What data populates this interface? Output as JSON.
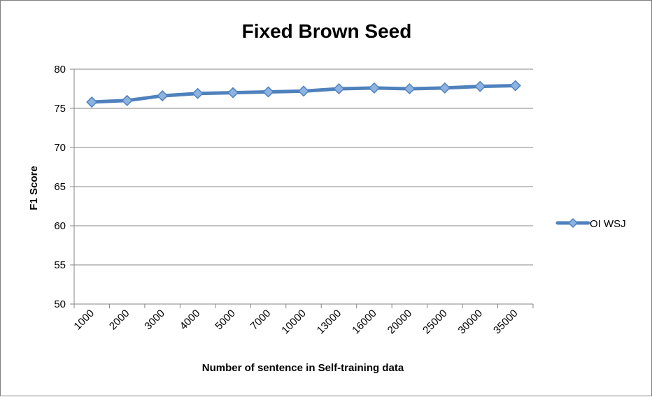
{
  "chart_data": {
    "type": "line",
    "title": "Fixed Brown Seed",
    "xlabel": "Number of sentence in Self-training data",
    "ylabel": "F1 Score",
    "ylim": [
      50,
      80
    ],
    "yticks": [
      50,
      55,
      60,
      65,
      70,
      75,
      80
    ],
    "grid": true,
    "legend_position": "right",
    "categories": [
      "1000",
      "2000",
      "3000",
      "4000",
      "5000",
      "7000",
      "10000",
      "13000",
      "16000",
      "20000",
      "25000",
      "30000",
      "35000"
    ],
    "series": [
      {
        "name": "OI WSJ",
        "color": "#4f81bd",
        "marker": "diamond",
        "values": [
          75.8,
          76.0,
          76.6,
          76.9,
          77.0,
          77.1,
          77.2,
          77.5,
          77.6,
          77.5,
          77.6,
          77.8,
          77.9
        ]
      }
    ]
  }
}
